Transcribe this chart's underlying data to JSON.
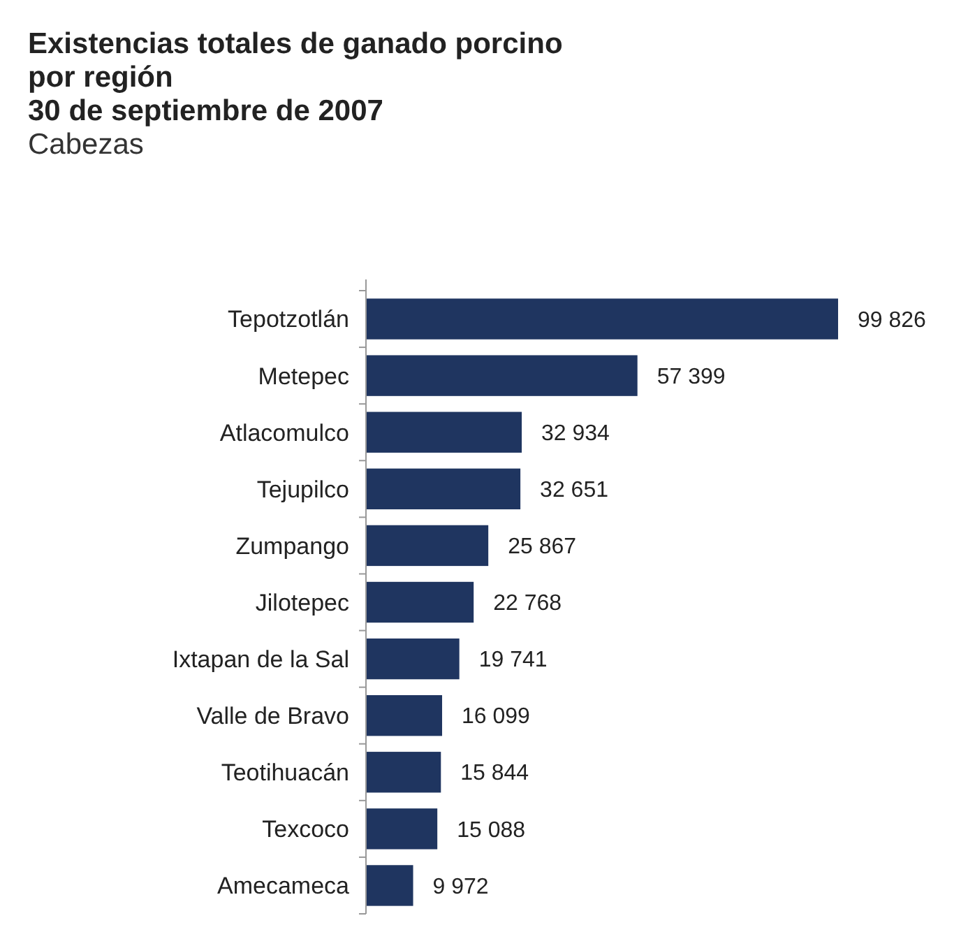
{
  "chart_data": {
    "type": "bar",
    "orientation": "horizontal",
    "title": "Existencias totales de ganado porcino por región",
    "subtitle": "30 de septiembre de 2007",
    "annotations": [
      "Cabezas"
    ],
    "categories": [
      "Tepotzotlán",
      "Metepec",
      "Atlacomulco",
      "Tejupilco",
      "Zumpango",
      "Jilotepec",
      "Ixtapan de la Sal",
      "Valle de Bravo",
      "Teotihuacán",
      "Texcoco",
      "Amecameca"
    ],
    "values": [
      99826,
      57399,
      32934,
      32651,
      25867,
      22768,
      19741,
      16099,
      15844,
      15088,
      9972
    ],
    "value_labels": [
      "99 826",
      "57 399",
      "32 934",
      "32 651",
      "25 867",
      "22 768",
      "19 741",
      "16 099",
      "15 844",
      "15 088",
      "9 972"
    ],
    "color": "#1f3560"
  }
}
